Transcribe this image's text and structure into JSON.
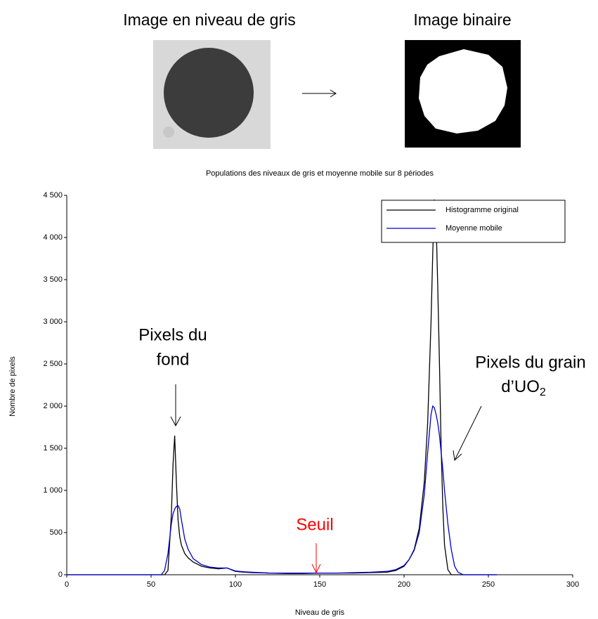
{
  "header": {
    "gray_title": "Image en niveau de gris",
    "binary_title": "Image binaire"
  },
  "chart_data": {
    "type": "line",
    "title": "Populations des niveaux de gris et moyenne mobile sur 8 périodes",
    "xlabel": "Niveau de gris",
    "ylabel": "Nombre de pixels",
    "x": [
      0,
      50,
      56,
      58,
      60,
      62,
      63,
      64,
      65,
      66,
      67,
      68,
      70,
      72,
      75,
      80,
      85,
      90,
      95,
      100,
      105,
      110,
      120,
      130,
      140,
      150,
      160,
      170,
      180,
      190,
      195,
      200,
      203,
      206,
      209,
      212,
      214,
      216,
      217,
      218,
      219,
      220,
      221,
      222,
      223,
      224,
      226,
      228,
      230,
      232,
      235,
      240,
      255
    ],
    "series": [
      {
        "name": "Histogramme original",
        "color": "#000000",
        "values": [
          0,
          0,
          0,
          0,
          50,
          700,
          1300,
          1650,
          1100,
          650,
          450,
          350,
          250,
          200,
          150,
          100,
          80,
          70,
          80,
          40,
          30,
          25,
          20,
          15,
          15,
          20,
          20,
          20,
          25,
          30,
          50,
          100,
          180,
          300,
          550,
          1100,
          1800,
          3000,
          3800,
          4450,
          4200,
          3400,
          2500,
          1500,
          800,
          350,
          60,
          0,
          0,
          0,
          0,
          0,
          0
        ]
      },
      {
        "name": "Moyenne mobile",
        "color": "#0000cc",
        "values": [
          0,
          0,
          0,
          50,
          250,
          600,
          720,
          780,
          810,
          820,
          780,
          650,
          420,
          300,
          190,
          120,
          90,
          80,
          80,
          45,
          35,
          30,
          20,
          20,
          20,
          20,
          20,
          25,
          30,
          40,
          60,
          110,
          180,
          290,
          500,
          950,
          1450,
          1900,
          2000,
          1980,
          1900,
          1800,
          1650,
          1450,
          1250,
          1000,
          600,
          300,
          100,
          30,
          0,
          0,
          0
        ]
      }
    ],
    "xlim": [
      0,
      300
    ],
    "xticks": [
      0,
      50,
      100,
      150,
      200,
      250,
      300
    ],
    "ylim": [
      0,
      4500
    ],
    "yticks": [
      0,
      500,
      {
        "value": 1000,
        "label": "1 000"
      },
      {
        "value": 1500,
        "label": "1 500"
      },
      {
        "value": 2000,
        "label": "2 000"
      },
      {
        "value": 2500,
        "label": "2 500"
      },
      {
        "value": 3000,
        "label": "3 000"
      },
      {
        "value": 3500,
        "label": "3 500"
      },
      {
        "value": 4000,
        "label": "4 000"
      },
      {
        "value": 4500,
        "label": "4 500"
      }
    ],
    "annotations": [
      {
        "lines": [
          "Pixels du",
          "fond"
        ]
      },
      {
        "lines": [
          "Pixels du grain",
          "d’UO"
        ],
        "subscript": "2"
      },
      {
        "text": "Seuil"
      }
    ]
  }
}
